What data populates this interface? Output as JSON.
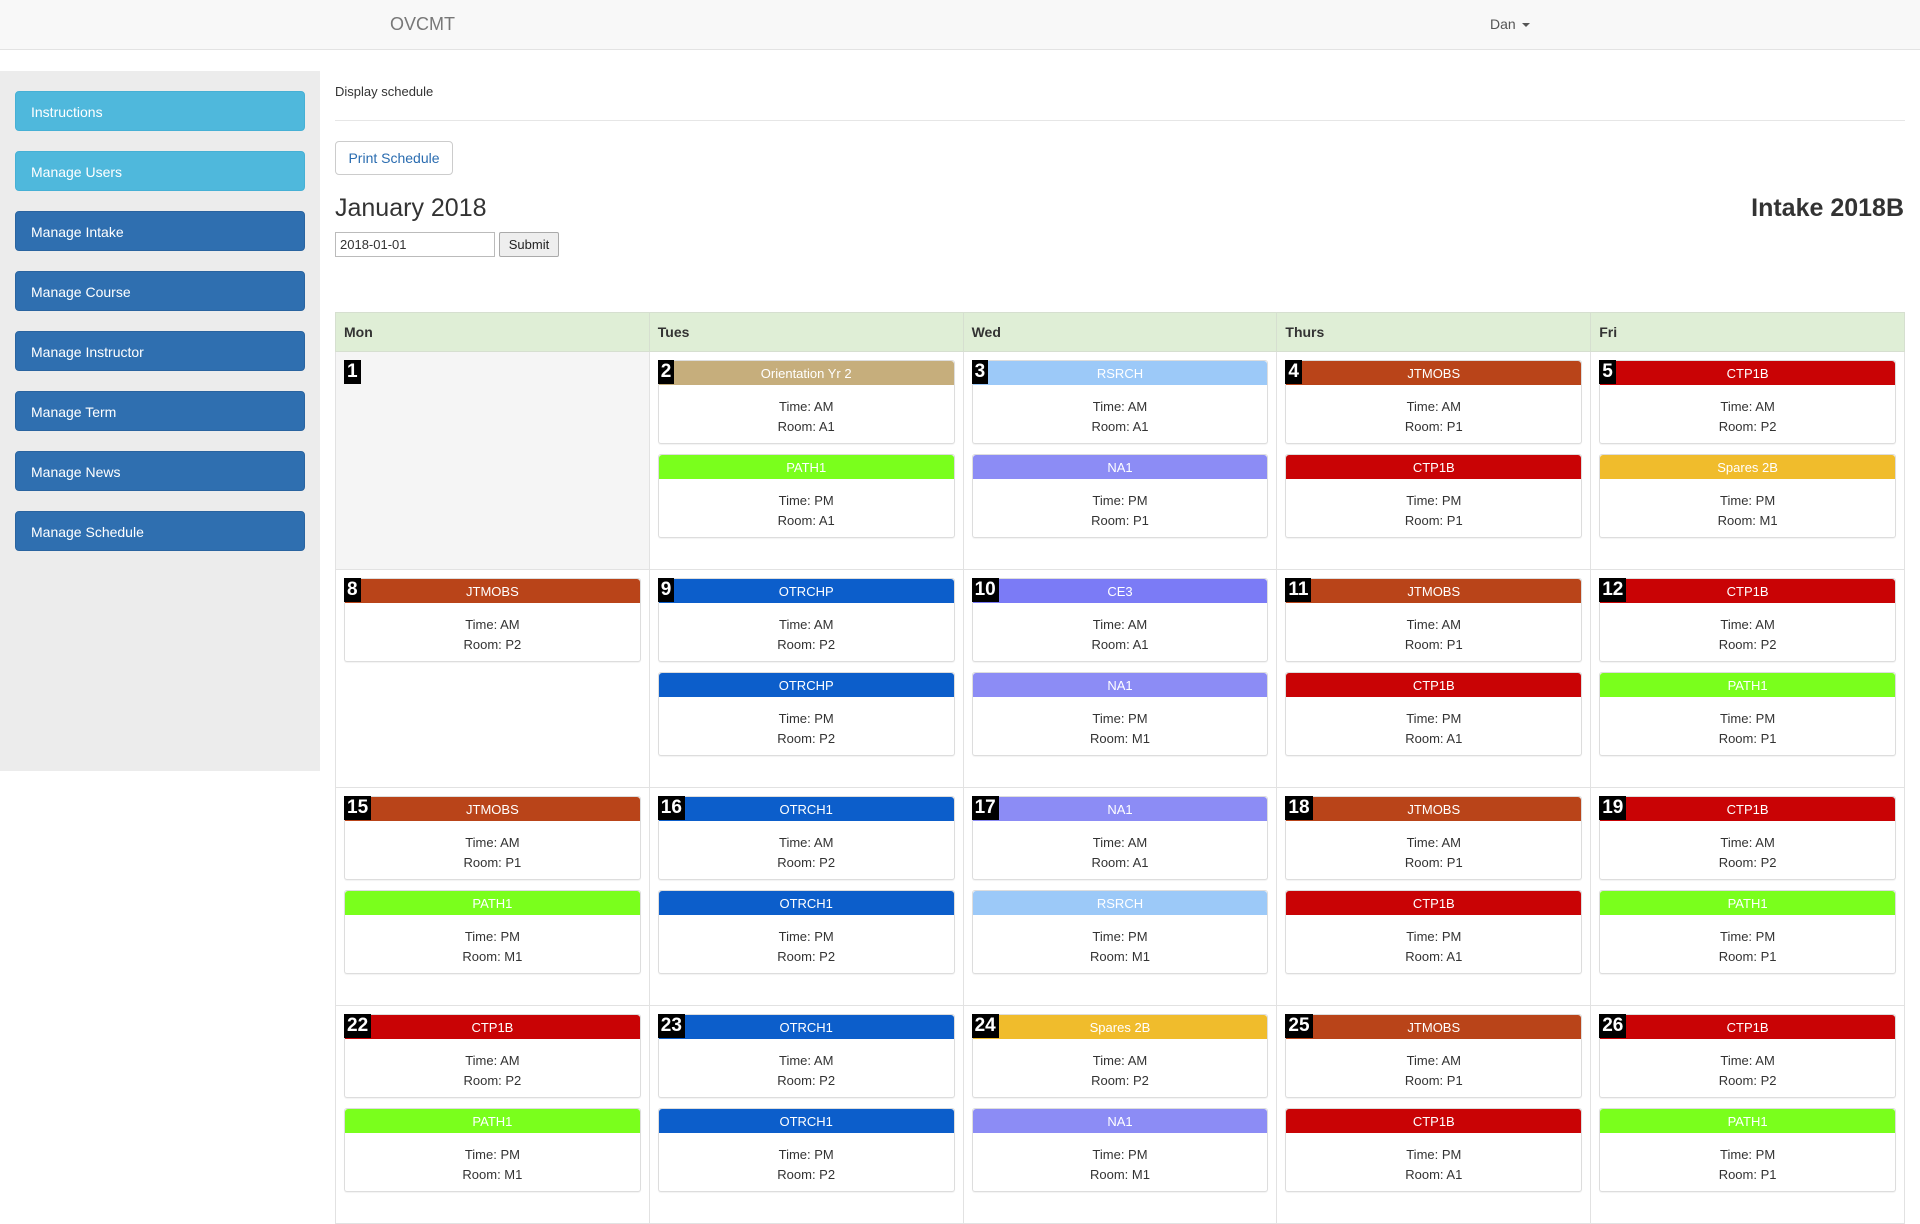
{
  "navbar": {
    "brand": "OVCMT",
    "user": "Dan"
  },
  "sidebar": {
    "items": [
      {
        "label": "Instructions",
        "style": "info"
      },
      {
        "label": "Manage Users",
        "style": "info"
      },
      {
        "label": "Manage Intake",
        "style": "primary"
      },
      {
        "label": "Manage Course",
        "style": "primary"
      },
      {
        "label": "Manage Instructor",
        "style": "primary"
      },
      {
        "label": "Manage Term",
        "style": "primary"
      },
      {
        "label": "Manage News",
        "style": "primary"
      },
      {
        "label": "Manage Schedule",
        "style": "primary"
      }
    ]
  },
  "main": {
    "title": "Display schedule",
    "print_label": "Print Schedule",
    "month": "January 2018",
    "intake": "Intake 2018B",
    "date_value": "2018-01-01",
    "submit_label": "Submit"
  },
  "calendar": {
    "headers": [
      "Mon",
      "Tues",
      "Wed",
      "Thurs",
      "Fri"
    ],
    "weeks": [
      [
        {
          "day": "1",
          "events": []
        },
        {
          "day": "2",
          "events": [
            {
              "name": "Orientation Yr 2",
              "color": "#c6ae7c",
              "time": "Time: AM",
              "room": "Room: A1"
            },
            {
              "name": "PATH1",
              "color": "#7aff1c",
              "time": "Time: PM",
              "room": "Room: A1"
            }
          ]
        },
        {
          "day": "3",
          "events": [
            {
              "name": "RSRCH",
              "color": "#9cc9f8",
              "time": "Time: AM",
              "room": "Room: A1"
            },
            {
              "name": "NA1",
              "color": "#8c8cf5",
              "time": "Time: PM",
              "room": "Room: P1"
            }
          ]
        },
        {
          "day": "4",
          "events": [
            {
              "name": "JTMOBS",
              "color": "#b94419",
              "time": "Time: AM",
              "room": "Room: P1"
            },
            {
              "name": "CTP1B",
              "color": "#c90305",
              "time": "Time: PM",
              "room": "Room: P1"
            }
          ]
        },
        {
          "day": "5",
          "events": [
            {
              "name": "CTP1B",
              "color": "#c90305",
              "time": "Time: AM",
              "room": "Room: P2"
            },
            {
              "name": "Spares 2B",
              "color": "#f0bc2c",
              "time": "Time: PM",
              "room": "Room: M1"
            }
          ]
        }
      ],
      [
        {
          "day": "8",
          "events": [
            {
              "name": "JTMOBS",
              "color": "#b94419",
              "time": "Time: AM",
              "room": "Room: P2"
            }
          ]
        },
        {
          "day": "9",
          "events": [
            {
              "name": "OTRCHP",
              "color": "#0c5ecb",
              "time": "Time: AM",
              "room": "Room: P2"
            },
            {
              "name": "OTRCHP",
              "color": "#0c5ecb",
              "time": "Time: PM",
              "room": "Room: P2"
            }
          ]
        },
        {
          "day": "10",
          "events": [
            {
              "name": "CE3",
              "color": "#7b7bf6",
              "time": "Time: AM",
              "room": "Room: A1"
            },
            {
              "name": "NA1",
              "color": "#8c8cf5",
              "time": "Time: PM",
              "room": "Room: M1"
            }
          ]
        },
        {
          "day": "11",
          "events": [
            {
              "name": "JTMOBS",
              "color": "#b94419",
              "time": "Time: AM",
              "room": "Room: P1"
            },
            {
              "name": "CTP1B",
              "color": "#c90305",
              "time": "Time: PM",
              "room": "Room: A1"
            }
          ]
        },
        {
          "day": "12",
          "events": [
            {
              "name": "CTP1B",
              "color": "#c90305",
              "time": "Time: AM",
              "room": "Room: P2"
            },
            {
              "name": "PATH1",
              "color": "#7aff1c",
              "time": "Time: PM",
              "room": "Room: P1"
            }
          ]
        }
      ],
      [
        {
          "day": "15",
          "events": [
            {
              "name": "JTMOBS",
              "color": "#b94419",
              "time": "Time: AM",
              "room": "Room: P1"
            },
            {
              "name": "PATH1",
              "color": "#7aff1c",
              "time": "Time: PM",
              "room": "Room: M1"
            }
          ]
        },
        {
          "day": "16",
          "events": [
            {
              "name": "OTRCH1",
              "color": "#0c5ecb",
              "time": "Time: AM",
              "room": "Room: P2"
            },
            {
              "name": "OTRCH1",
              "color": "#0c5ecb",
              "time": "Time: PM",
              "room": "Room: P2"
            }
          ]
        },
        {
          "day": "17",
          "events": [
            {
              "name": "NA1",
              "color": "#8c8cf5",
              "time": "Time: AM",
              "room": "Room: A1"
            },
            {
              "name": "RSRCH",
              "color": "#9cc9f8",
              "time": "Time: PM",
              "room": "Room: M1"
            }
          ]
        },
        {
          "day": "18",
          "events": [
            {
              "name": "JTMOBS",
              "color": "#b94419",
              "time": "Time: AM",
              "room": "Room: P1"
            },
            {
              "name": "CTP1B",
              "color": "#c90305",
              "time": "Time: PM",
              "room": "Room: A1"
            }
          ]
        },
        {
          "day": "19",
          "events": [
            {
              "name": "CTP1B",
              "color": "#c90305",
              "time": "Time: AM",
              "room": "Room: P2"
            },
            {
              "name": "PATH1",
              "color": "#7aff1c",
              "time": "Time: PM",
              "room": "Room: P1"
            }
          ]
        }
      ],
      [
        {
          "day": "22",
          "events": [
            {
              "name": "CTP1B",
              "color": "#c90305",
              "time": "Time: AM",
              "room": "Room: P2"
            },
            {
              "name": "PATH1",
              "color": "#7aff1c",
              "time": "Time: PM",
              "room": "Room: M1"
            }
          ]
        },
        {
          "day": "23",
          "events": [
            {
              "name": "OTRCH1",
              "color": "#0c5ecb",
              "time": "Time: AM",
              "room": "Room: P2"
            },
            {
              "name": "OTRCH1",
              "color": "#0c5ecb",
              "time": "Time: PM",
              "room": "Room: P2"
            }
          ]
        },
        {
          "day": "24",
          "events": [
            {
              "name": "Spares 2B",
              "color": "#f0bc2c",
              "time": "Time: AM",
              "room": "Room: P2"
            },
            {
              "name": "NA1",
              "color": "#8c8cf5",
              "time": "Time: PM",
              "room": "Room: M1"
            }
          ]
        },
        {
          "day": "25",
          "events": [
            {
              "name": "JTMOBS",
              "color": "#b94419",
              "time": "Time: AM",
              "room": "Room: P1"
            },
            {
              "name": "CTP1B",
              "color": "#c90305",
              "time": "Time: PM",
              "room": "Room: A1"
            }
          ]
        },
        {
          "day": "26",
          "events": [
            {
              "name": "CTP1B",
              "color": "#c90305",
              "time": "Time: AM",
              "room": "Room: P2"
            },
            {
              "name": "PATH1",
              "color": "#7aff1c",
              "time": "Time: PM",
              "room": "Room: P1"
            }
          ]
        }
      ]
    ]
  }
}
